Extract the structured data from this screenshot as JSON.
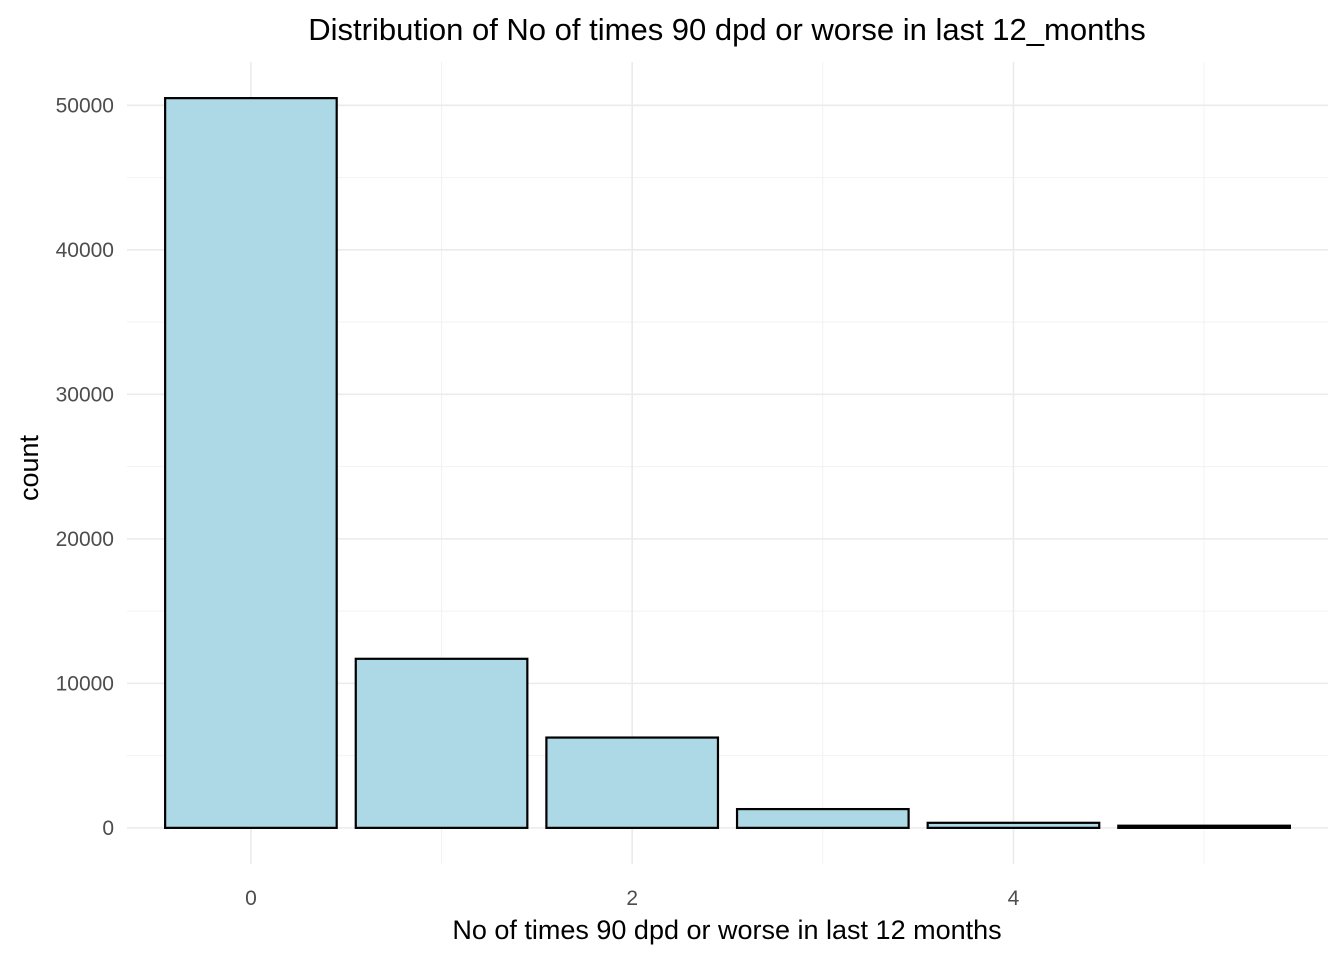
{
  "chart_data": {
    "type": "bar",
    "title": "Distribution of No of times 90 dpd or worse in last 12_months",
    "xlabel": "No of times 90 dpd or worse in last 12 months",
    "ylabel": "count",
    "x": [
      0,
      1,
      2,
      3,
      4,
      5
    ],
    "values": [
      50500,
      11700,
      6250,
      1300,
      350,
      150
    ],
    "xlim": [
      -0.65,
      5.65
    ],
    "ylim": [
      -2500,
      53000
    ],
    "x_ticks": [
      0,
      2,
      4
    ],
    "x_tick_labels": [
      "0",
      "2",
      "4"
    ],
    "x_minor_ticks": [
      1,
      3,
      5
    ],
    "y_ticks": [
      0,
      10000,
      20000,
      30000,
      40000,
      50000
    ],
    "y_tick_labels": [
      "0",
      "10000",
      "20000",
      "30000",
      "40000",
      "50000"
    ],
    "y_minor_ticks": [
      5000,
      15000,
      25000,
      35000,
      45000
    ],
    "grid": true,
    "legend": "none",
    "colors": {
      "bar_fill": "#add8e6",
      "bar_outline": "#000000",
      "grid_major": "#ebebeb",
      "grid_minor": "#f2f2f2",
      "tick_text": "#4d4d4d",
      "text": "#000000"
    }
  }
}
